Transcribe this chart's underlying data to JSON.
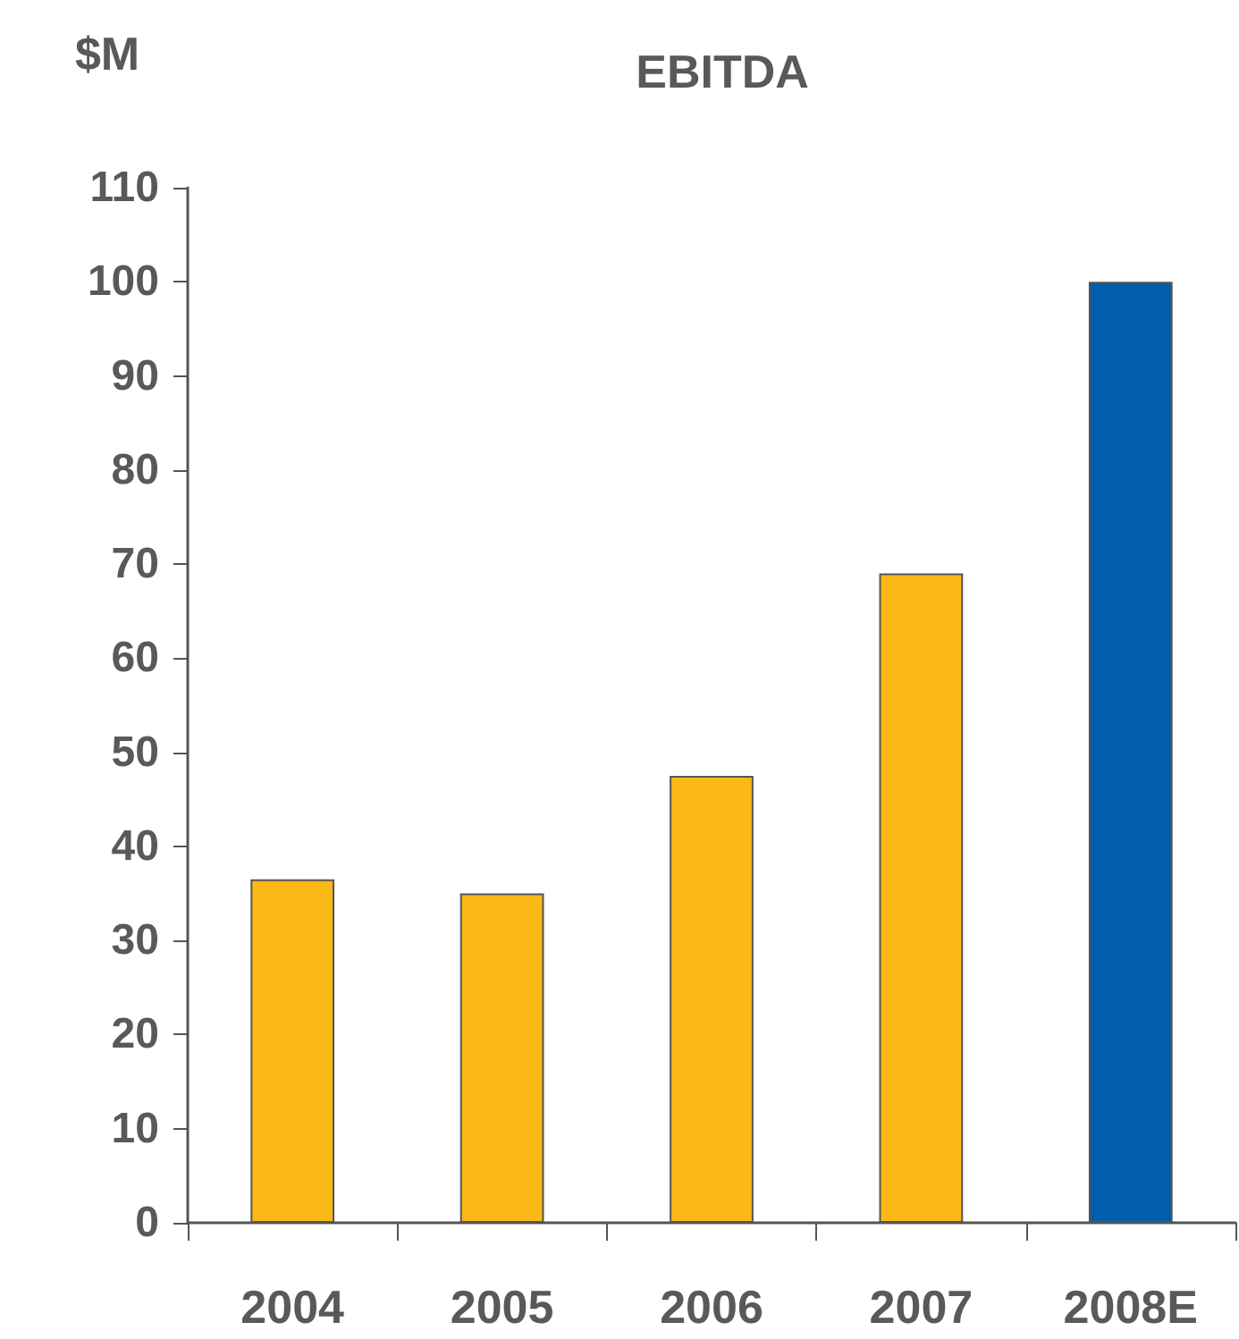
{
  "chart_data": {
    "type": "bar",
    "title": "EBITDA",
    "ylabel": "$M",
    "categories": [
      "2004",
      "2005",
      "2006",
      "2007",
      "2008E"
    ],
    "values": [
      36.5,
      35,
      47.5,
      69,
      100
    ],
    "colors": [
      "#fbb917",
      "#fbb917",
      "#fbb917",
      "#fbb917",
      "#005eaa"
    ],
    "ylim": [
      0,
      110
    ],
    "yticks": [
      0,
      10,
      20,
      30,
      40,
      50,
      60,
      70,
      80,
      90,
      100,
      110
    ],
    "grid": false
  }
}
